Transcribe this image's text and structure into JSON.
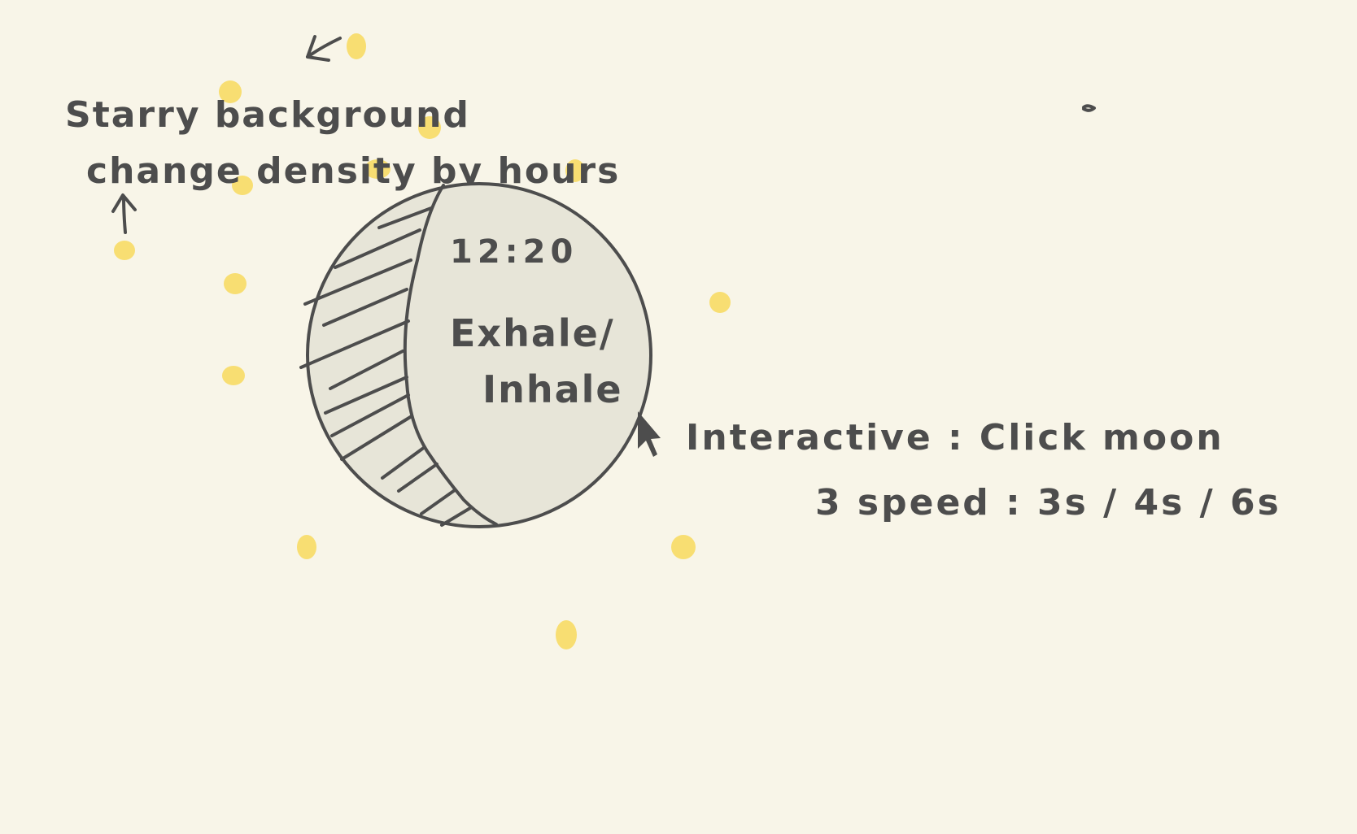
{
  "annotations": {
    "starry_line1": "Starry background",
    "starry_line2": "change density by hours",
    "interactive": "Interactive : Click moon",
    "speed": "3 speed : 3s / 4s / 6s"
  },
  "moon": {
    "time": "12:20",
    "label_line1": "Exhale/",
    "label_line2": "Inhale"
  },
  "colors": {
    "paper": "#f8f5e8",
    "ink": "#4d4d4d",
    "star": "#f8de72",
    "moon_fill": "#e7e5d8"
  }
}
